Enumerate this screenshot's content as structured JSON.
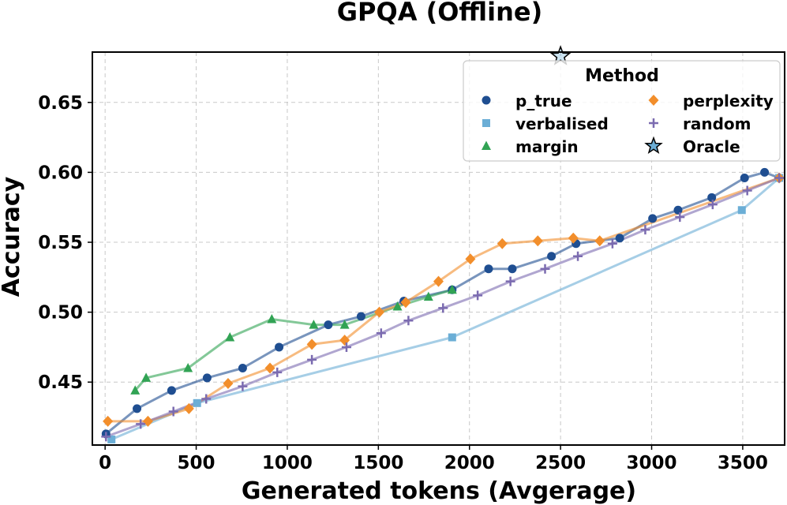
{
  "chart_data": {
    "type": "line",
    "title": "GPQA (Offline)",
    "xlabel": "Generated tokens (Avgerage)",
    "ylabel": "Accuracy",
    "xlim": [
      -70,
      3730
    ],
    "ylim": [
      0.405,
      0.686
    ],
    "xticks": [
      0,
      500,
      1000,
      1500,
      2000,
      2500,
      3000,
      3500
    ],
    "yticks": [
      0.45,
      0.5,
      0.55,
      0.6,
      0.65
    ],
    "xtick_labels": [
      "0",
      "500",
      "1000",
      "1500",
      "2000",
      "2500",
      "3000",
      "3500"
    ],
    "ytick_labels": [
      "0.45",
      "0.50",
      "0.55",
      "0.60",
      "0.65"
    ],
    "grid": true,
    "legend": {
      "title": "Method",
      "placement": "top-right",
      "columns": 2
    },
    "series": [
      {
        "name": "p_true",
        "color": "#1f4e91",
        "marker": "circle",
        "x": [
          5,
          175,
          365,
          560,
          755,
          955,
          1225,
          1405,
          1640,
          1905,
          2105,
          2235,
          2450,
          2585,
          2825,
          3005,
          3145,
          3330,
          3510,
          3620,
          3700
        ],
        "y": [
          0.413,
          0.431,
          0.444,
          0.453,
          0.46,
          0.475,
          0.491,
          0.497,
          0.508,
          0.516,
          0.531,
          0.531,
          0.54,
          0.549,
          0.553,
          0.567,
          0.573,
          0.582,
          0.596,
          0.6,
          0.596
        ]
      },
      {
        "name": "verbalised",
        "color": "#6baed6",
        "marker": "square",
        "x": [
          35,
          505,
          1905,
          3495,
          3700
        ],
        "y": [
          0.409,
          0.435,
          0.482,
          0.573,
          0.596
        ]
      },
      {
        "name": "margin",
        "color": "#31a354",
        "marker": "triangle",
        "x": [
          165,
          225,
          455,
          685,
          915,
          1145,
          1315,
          1605,
          1775,
          1905
        ],
        "y": [
          0.444,
          0.453,
          0.46,
          0.482,
          0.495,
          0.491,
          0.491,
          0.504,
          0.511,
          0.516
        ]
      },
      {
        "name": "perplexity",
        "color": "#f28e2b",
        "marker": "diamond",
        "x": [
          15,
          235,
          460,
          675,
          905,
          1135,
          1315,
          1505,
          1650,
          1830,
          2005,
          2180,
          2375,
          2570,
          2715,
          3700
        ],
        "y": [
          0.422,
          0.422,
          0.431,
          0.449,
          0.46,
          0.477,
          0.48,
          0.5,
          0.507,
          0.522,
          0.538,
          0.549,
          0.551,
          0.553,
          0.551,
          0.596
        ]
      },
      {
        "name": "random",
        "color": "#7b6bb0",
        "marker": "plus",
        "x": [
          5,
          195,
          375,
          555,
          755,
          945,
          1135,
          1325,
          1515,
          1665,
          1855,
          2045,
          2225,
          2415,
          2595,
          2785,
          2965,
          3155,
          3335,
          3525,
          3700
        ],
        "y": [
          0.411,
          0.42,
          0.429,
          0.438,
          0.447,
          0.457,
          0.466,
          0.475,
          0.485,
          0.494,
          0.503,
          0.512,
          0.522,
          0.531,
          0.54,
          0.549,
          0.559,
          0.568,
          0.577,
          0.587,
          0.596
        ]
      },
      {
        "name": "Oracle",
        "color": "#6baed6",
        "marker": "star",
        "x": [
          2500
        ],
        "y": [
          0.683
        ]
      }
    ]
  }
}
